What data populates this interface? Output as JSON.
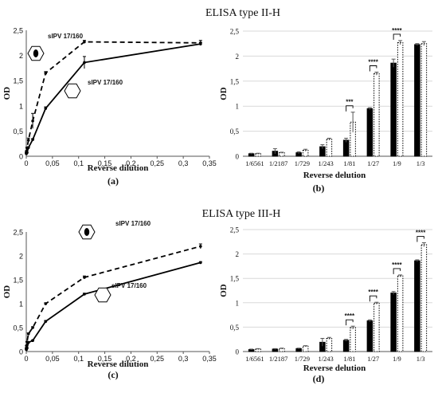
{
  "sections": [
    {
      "title": "ELISA type II-H"
    },
    {
      "title": "ELISA type III-H"
    }
  ],
  "chart_data": [
    {
      "panel": "(a)",
      "type": "line",
      "xlabel": "Reverse dilution",
      "ylabel": "OD",
      "xlim": [
        0,
        0.35
      ],
      "ylim": [
        0,
        2.5
      ],
      "xticks": [
        "0",
        "0,05",
        "0,1",
        "0,15",
        "0,2",
        "0,25",
        "0,3",
        "0,35"
      ],
      "yticks": [
        "0",
        "0,5",
        "1",
        "1,5",
        "2",
        "2,5"
      ],
      "grid": false,
      "series": [
        {
          "name": "sIPV 17/160",
          "style": "dashed",
          "icon": "filled-hexagon-icon",
          "x": [
            0.000152,
            0.000457,
            0.00137,
            0.00412,
            0.0123,
            0.037,
            0.111,
            0.333
          ],
          "y": [
            0.07,
            0.1,
            0.16,
            0.32,
            0.7,
            1.65,
            2.27,
            2.25
          ],
          "err": [
            0.01,
            0.01,
            0.02,
            0.04,
            0.15,
            0.03,
            0.03,
            0.05
          ]
        },
        {
          "name": "sIPV 17/160",
          "style": "solid",
          "icon": "outline-hexagon-icon",
          "x": [
            0.000152,
            0.000457,
            0.00137,
            0.00412,
            0.0123,
            0.037,
            0.111,
            0.333
          ],
          "y": [
            0.05,
            0.07,
            0.07,
            0.17,
            0.33,
            0.95,
            1.86,
            2.23
          ],
          "err": [
            0.01,
            0.01,
            0.01,
            0.02,
            0.02,
            0.03,
            0.12,
            0.03
          ]
        }
      ]
    },
    {
      "panel": "(b)",
      "type": "bar",
      "xlabel": "Reverse delution",
      "ylabel": "OD",
      "ylim": [
        0,
        2.5
      ],
      "yticks": [
        "0",
        "0,5",
        "1",
        "1,5",
        "2",
        "2,5"
      ],
      "grid": true,
      "categories": [
        "1/6561",
        "1/2187",
        "1/729",
        "1/243",
        "1/81",
        "1/27",
        "1/9",
        "1/3"
      ],
      "series": [
        {
          "style": "solid-black",
          "values": [
            0.05,
            0.1,
            0.07,
            0.19,
            0.32,
            0.95,
            1.86,
            2.23
          ],
          "err": [
            0.01,
            0.05,
            0.02,
            0.04,
            0.04,
            0.02,
            0.08,
            0.02
          ]
        },
        {
          "style": "dotted-white",
          "values": [
            0.05,
            0.07,
            0.12,
            0.34,
            0.68,
            1.65,
            2.27,
            2.25
          ],
          "err": [
            0.01,
            0.01,
            0.02,
            0.02,
            0.2,
            0.03,
            0.04,
            0.04
          ]
        }
      ],
      "significance": [
        {
          "category": "1/81",
          "label": "***"
        },
        {
          "category": "1/27",
          "label": "****"
        },
        {
          "category": "1/9",
          "label": "****"
        }
      ]
    },
    {
      "panel": "(c)",
      "type": "line",
      "xlabel": "Reverse dilution",
      "ylabel": "OD",
      "xlim": [
        0,
        0.35
      ],
      "ylim": [
        0,
        2.5
      ],
      "xticks": [
        "0",
        "0,05",
        "0,1",
        "0,15",
        "0,2",
        "0,25",
        "0,3",
        "0,35"
      ],
      "yticks": [
        "0",
        "0,5",
        "1",
        "1,5",
        "2",
        "2,5"
      ],
      "grid": false,
      "series": [
        {
          "name": "sIPV 17/160",
          "style": "dashed",
          "icon": "filled-hexagon-icon",
          "x": [
            0.000152,
            0.000457,
            0.00137,
            0.00412,
            0.0123,
            0.037,
            0.111,
            0.333
          ],
          "y": [
            0.07,
            0.12,
            0.2,
            0.37,
            0.5,
            1.0,
            1.55,
            2.2
          ],
          "err": [
            0.01,
            0.01,
            0.01,
            0.02,
            0.02,
            0.02,
            0.03,
            0.05
          ]
        },
        {
          "name": "sIPV 17/160",
          "style": "solid",
          "icon": "outline-hexagon-icon",
          "x": [
            0.000152,
            0.000457,
            0.00137,
            0.00412,
            0.0123,
            0.037,
            0.111,
            0.333
          ],
          "y": [
            0.04,
            0.06,
            0.07,
            0.19,
            0.23,
            0.63,
            1.2,
            1.86
          ],
          "err": [
            0.01,
            0.01,
            0.01,
            0.01,
            0.01,
            0.02,
            0.02,
            0.02
          ]
        }
      ]
    },
    {
      "panel": "(d)",
      "type": "bar",
      "xlabel": "Reverse delution",
      "ylabel": "OD",
      "ylim": [
        0,
        2.5
      ],
      "yticks": [
        "0",
        "0,5",
        "1",
        "1,5",
        "2",
        "2,5"
      ],
      "grid": true,
      "categories": [
        "1/6561",
        "1/2187",
        "1/729",
        "1/243",
        "1/81",
        "1/27",
        "1/9",
        "1/3"
      ],
      "series": [
        {
          "style": "solid-black",
          "values": [
            0.04,
            0.05,
            0.06,
            0.19,
            0.23,
            0.63,
            1.2,
            1.86
          ],
          "err": [
            0.01,
            0.01,
            0.01,
            0.08,
            0.02,
            0.02,
            0.03,
            0.02
          ]
        },
        {
          "style": "dotted-white",
          "values": [
            0.05,
            0.06,
            0.11,
            0.27,
            0.49,
            0.99,
            1.55,
            2.19
          ],
          "err": [
            0.01,
            0.01,
            0.01,
            0.02,
            0.03,
            0.02,
            0.02,
            0.04
          ]
        }
      ],
      "significance": [
        {
          "category": "1/81",
          "label": "****"
        },
        {
          "category": "1/27",
          "label": "****"
        },
        {
          "category": "1/9",
          "label": "****"
        },
        {
          "category": "1/3",
          "label": "****"
        }
      ]
    }
  ]
}
